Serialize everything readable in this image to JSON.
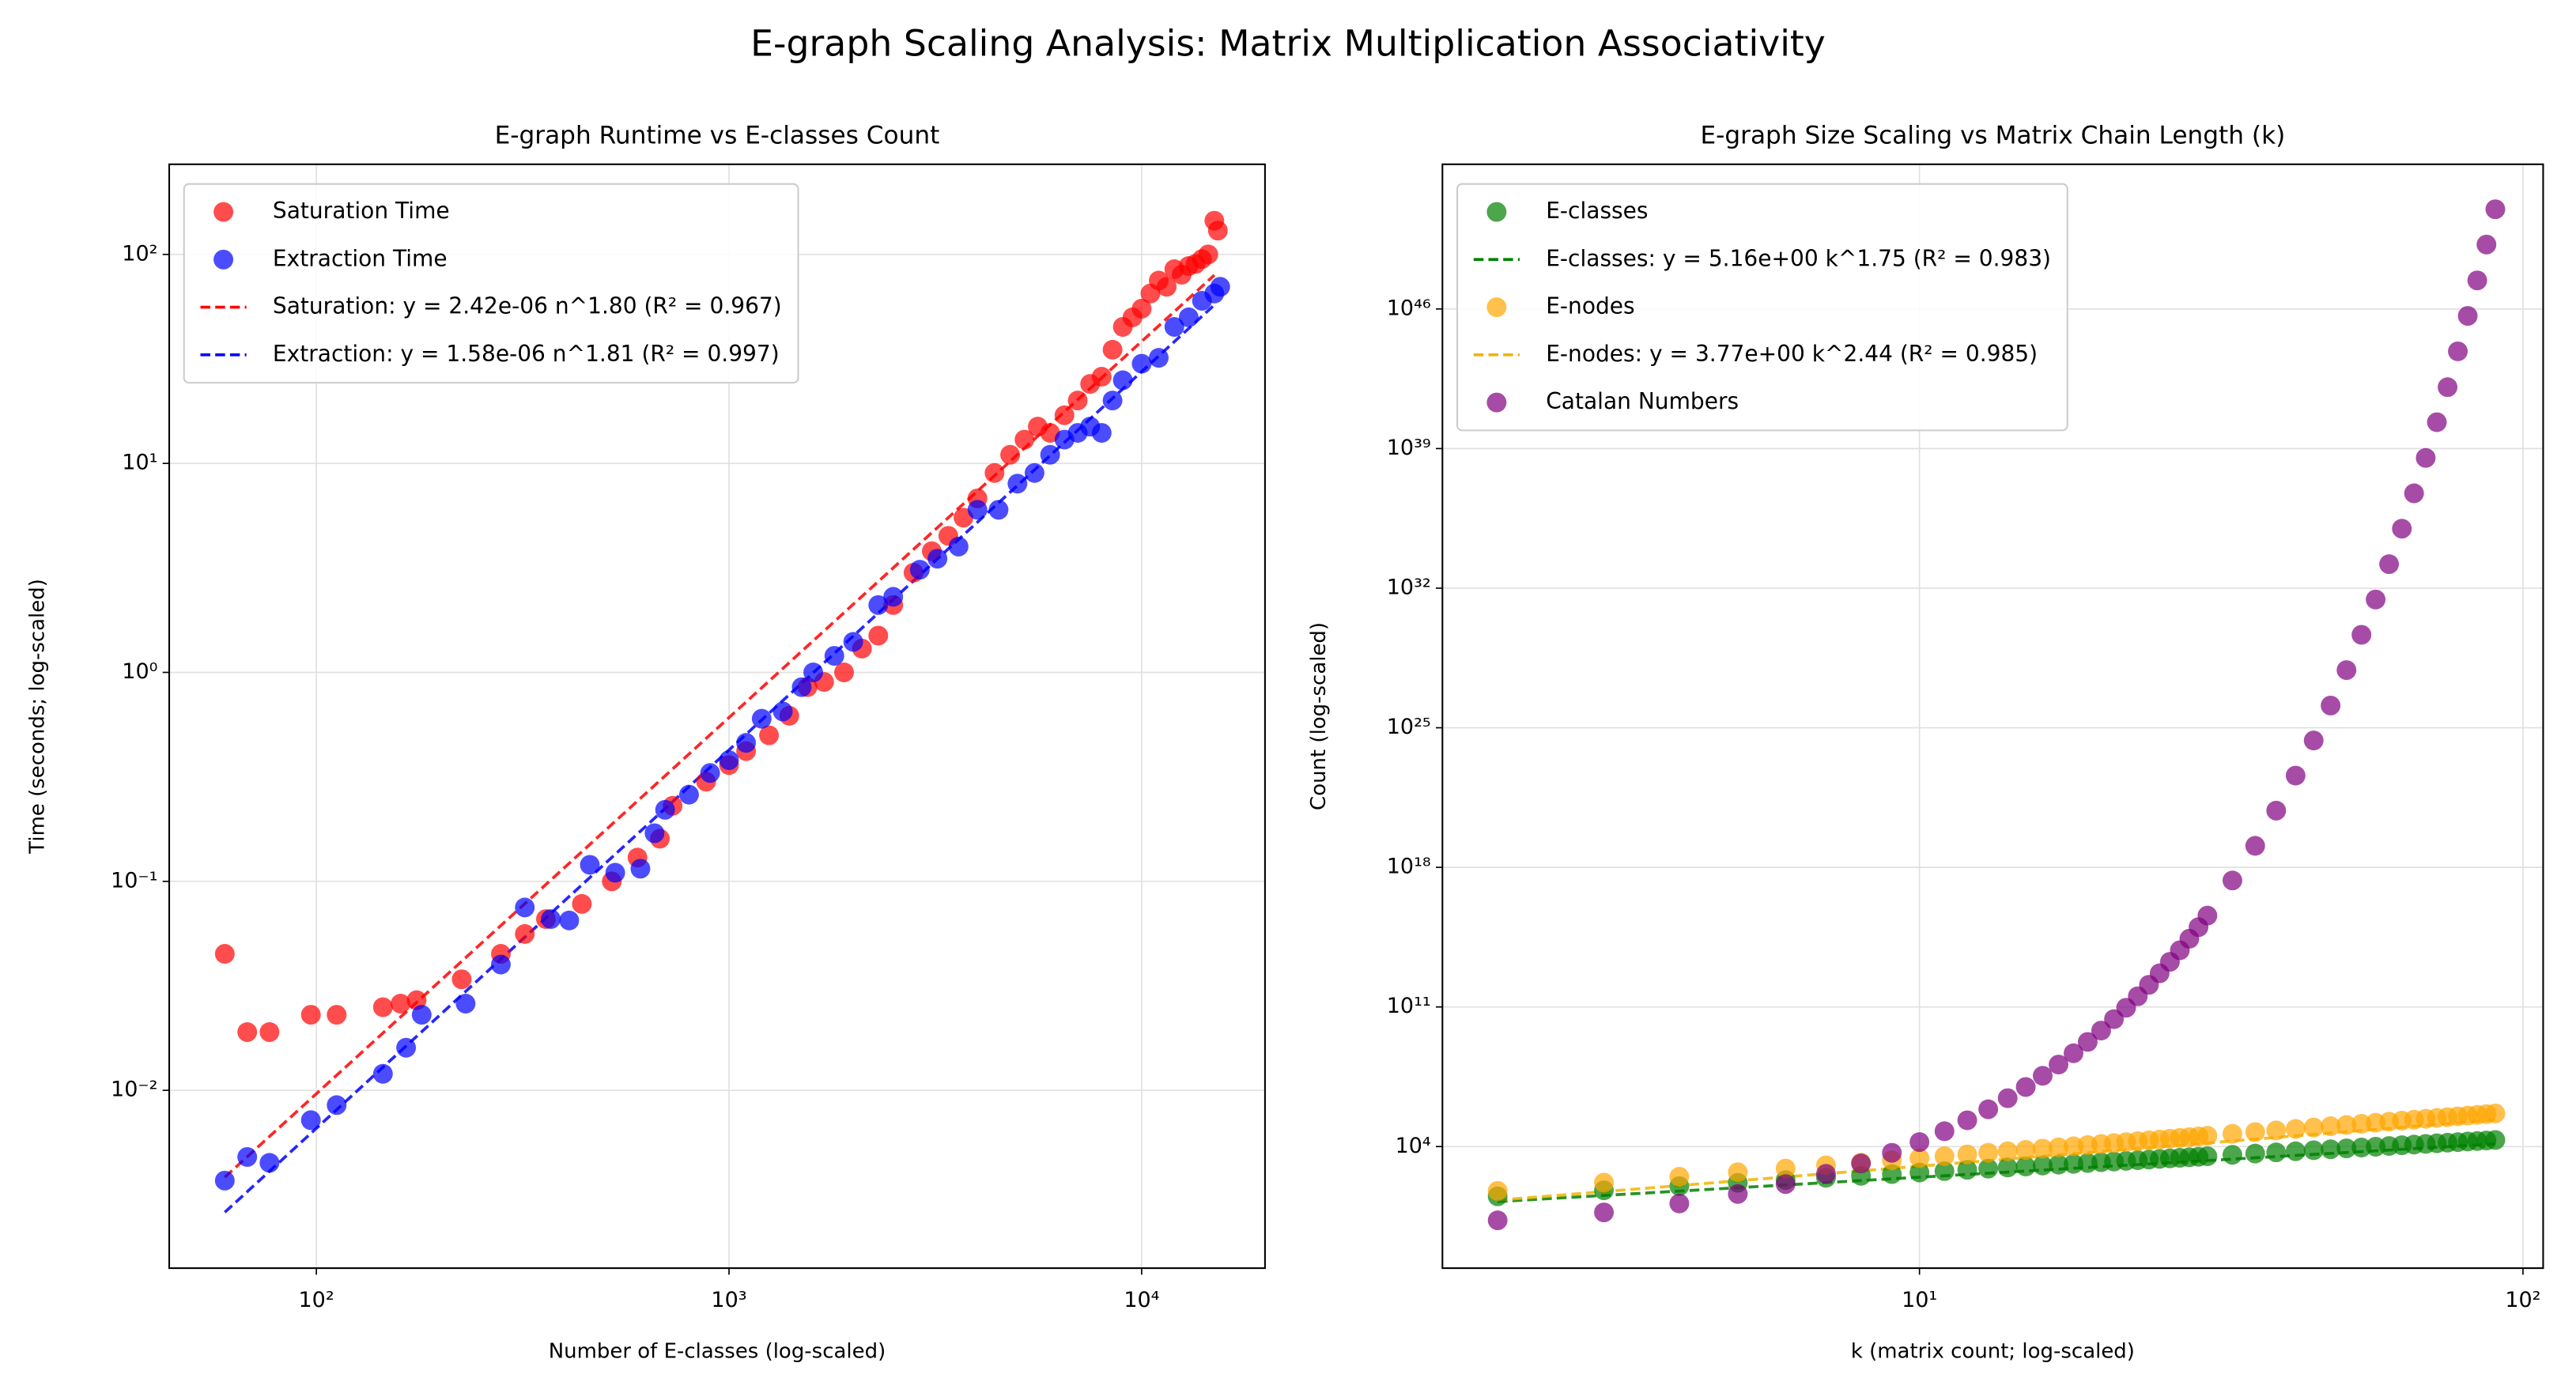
{
  "title": "E-graph Scaling Analysis: Matrix Multiplication Associativity",
  "chart_data": [
    {
      "type": "scatter",
      "title": "E-graph Runtime vs E-classes Count",
      "x_label": "Number of E-classes (log-scaled)",
      "y_label": "Time (seconds; log-scaled)",
      "xscale": "log",
      "yscale": "log",
      "grid": true,
      "legend": "upper-left",
      "alpha": 0.7,
      "xlim": [
        44,
        19900
      ],
      "ylim": [
        0.00141,
        270
      ],
      "xticks": [
        {
          "value": 100,
          "label": "10²"
        },
        {
          "value": 1000,
          "label": "10³"
        },
        {
          "value": 10000,
          "label": "10⁴"
        }
      ],
      "yticks": [
        {
          "value": 0.01,
          "label": "10⁻²"
        },
        {
          "value": 0.1,
          "label": "10⁻¹"
        },
        {
          "value": 1,
          "label": "10⁰"
        },
        {
          "value": 10,
          "label": "10¹"
        },
        {
          "value": 100,
          "label": "10²"
        }
      ],
      "series": [
        {
          "name": "Saturation Time",
          "kind": "scatter",
          "color": "red",
          "x": [
            60,
            68,
            77,
            97,
            112,
            145,
            160,
            175,
            225,
            280,
            320,
            360,
            440,
            520,
            600,
            680,
            730,
            880,
            1000,
            1100,
            1250,
            1400,
            1550,
            1700,
            1900,
            2100,
            2300,
            2500,
            2800,
            3100,
            3400,
            3700,
            4000,
            4400,
            4800,
            5200,
            5600,
            6000,
            6500,
            7000,
            7500,
            8000,
            8500,
            9000,
            9500,
            10000,
            10500,
            11000,
            11500,
            12000,
            12500,
            13000,
            13500,
            14000,
            14500,
            15000,
            15300
          ],
          "values": [
            0.045,
            0.019,
            0.019,
            0.023,
            0.023,
            0.025,
            0.026,
            0.027,
            0.034,
            0.045,
            0.056,
            0.066,
            0.078,
            0.1,
            0.13,
            0.16,
            0.23,
            0.3,
            0.36,
            0.42,
            0.5,
            0.62,
            0.85,
            0.9,
            1.0,
            1.3,
            1.5,
            2.1,
            3.0,
            3.8,
            4.5,
            5.5,
            6.8,
            9,
            11,
            13,
            15,
            14,
            17,
            20,
            24,
            26,
            35,
            45,
            50,
            55,
            65,
            75,
            70,
            85,
            80,
            88,
            90,
            95,
            100,
            145,
            130
          ]
        },
        {
          "name": "Extraction Time",
          "kind": "scatter",
          "color": "blue",
          "x": [
            60,
            68,
            77,
            97,
            112,
            145,
            165,
            180,
            230,
            280,
            320,
            370,
            410,
            460,
            530,
            610,
            660,
            700,
            800,
            900,
            1000,
            1100,
            1200,
            1350,
            1500,
            1600,
            1800,
            2000,
            2300,
            2500,
            2900,
            3200,
            3600,
            4000,
            4500,
            5000,
            5500,
            6000,
            6500,
            7000,
            7500,
            8000,
            8500,
            9000,
            10000,
            11000,
            12000,
            13000,
            14000,
            15000,
            15500
          ],
          "values": [
            0.0037,
            0.0048,
            0.0045,
            0.0072,
            0.0085,
            0.012,
            0.016,
            0.023,
            0.026,
            0.04,
            0.075,
            0.066,
            0.065,
            0.12,
            0.11,
            0.115,
            0.17,
            0.22,
            0.26,
            0.33,
            0.38,
            0.46,
            0.6,
            0.65,
            0.85,
            1.0,
            1.2,
            1.4,
            2.1,
            2.3,
            3.1,
            3.5,
            4.0,
            6.0,
            6.0,
            8.0,
            9.0,
            11,
            13,
            14,
            15,
            14,
            20,
            25,
            30,
            32,
            45,
            50,
            60,
            65,
            70
          ]
        },
        {
          "name": "Saturation: y = 2.42e-06 n^1.80 (R² = 0.967)",
          "kind": "fit",
          "color": "red",
          "x": [
            60,
            15000
          ],
          "values": [
            0.00384,
            79.6
          ]
        },
        {
          "name": "Extraction: y = 1.58e-06 n^1.81 (R² = 0.997)",
          "kind": "fit",
          "color": "blue",
          "x": [
            60,
            15000
          ],
          "values": [
            0.00261,
            57.3
          ]
        }
      ]
    },
    {
      "type": "scatter",
      "title": "E-graph Size Scaling vs Matrix Chain Length (k)",
      "x_label": "k (matrix count; log-scaled)",
      "y_label": "Count (log-scaled)",
      "xscale": "log",
      "yscale": "log",
      "grid": true,
      "legend": "upper-left",
      "alpha": 0.7,
      "xlim": [
        1.62,
        108
      ],
      "ylim": [
        0.008,
        1.8e+53
      ],
      "xticks": [
        {
          "value": 10,
          "label": "10¹"
        },
        {
          "value": 100,
          "label": "10²"
        }
      ],
      "yticks": [
        {
          "value": 10000.0,
          "label": "10⁴"
        },
        {
          "value": 100000000000.0,
          "label": "10¹¹"
        },
        {
          "value": 1e+18,
          "label": "10¹⁸"
        },
        {
          "value": 1e+25,
          "label": "10²⁵"
        },
        {
          "value": 1e+32,
          "label": "10³²"
        },
        {
          "value": 1e+39,
          "label": "10³⁹"
        },
        {
          "value": 1e+46,
          "label": "10⁴⁶"
        }
      ],
      "series": [
        {
          "name": "E-classes",
          "kind": "scatter",
          "color": "green",
          "x": [
            2,
            3,
            4,
            5,
            6,
            7,
            8,
            9,
            10,
            11,
            12,
            13,
            14,
            15,
            16,
            17,
            18,
            19,
            20,
            21,
            22,
            23,
            24,
            25,
            26,
            27,
            28,
            29,
            30,
            33,
            36,
            39,
            42,
            45,
            48,
            51,
            54,
            57,
            60,
            63,
            66,
            69,
            72,
            75,
            78,
            81,
            84,
            87,
            90
          ],
          "values": [
            32,
            64,
            104,
            153,
            208,
            272,
            341,
            417,
            500,
            587,
            682,
            783,
            889,
            1000,
            1120,
            1240,
            1360,
            1500,
            1640,
            1780,
            1920,
            2080,
            2230,
            2400,
            2560,
            2730,
            2900,
            3080,
            3270,
            3850,
            4470,
            5130,
            5810,
            6550,
            7310,
            8130,
            8930,
            9820,
            10700,
            11600,
            12600,
            13600,
            14600,
            15700,
            16700,
            17900,
            19000,
            20200,
            21400
          ]
        },
        {
          "name": "E-classes: y = 5.16e+00 k^1.75 (R² = 0.983)",
          "kind": "fit",
          "color": "green",
          "x": [
            2,
            90
          ],
          "values": [
            17.4,
            13600
          ]
        },
        {
          "name": "E-nodes",
          "kind": "scatter",
          "color": "orange",
          "x": [
            2,
            3,
            4,
            5,
            6,
            7,
            8,
            9,
            10,
            11,
            12,
            13,
            14,
            15,
            16,
            17,
            18,
            19,
            20,
            21,
            22,
            23,
            24,
            25,
            26,
            27,
            28,
            29,
            30,
            33,
            36,
            39,
            42,
            45,
            48,
            51,
            54,
            57,
            60,
            63,
            66,
            69,
            72,
            75,
            78,
            81,
            84,
            87,
            90
          ],
          "values": [
            60,
            155,
            305,
            516,
            791,
            1140,
            1560,
            2050,
            2630,
            3280,
            4040,
            4880,
            5800,
            6820,
            7930,
            9140,
            10400,
            11900,
            13400,
            15000,
            16700,
            18700,
            20600,
            22600,
            24800,
            27100,
            29500,
            32100,
            34800,
            43700,
            53300,
            64400,
            76600,
            90200,
            105000,
            121000,
            138000,
            157000,
            177000,
            199000,
            222000,
            247000,
            272000,
            299000,
            328000,
            358000,
            390000,
            426000,
            459000
          ]
        },
        {
          "name": "E-nodes: y = 3.77e+00 k^2.44 (R² = 0.985)",
          "kind": "fit",
          "color": "#f0b400",
          "x": [
            2,
            90
          ],
          "values": [
            20.5,
            221000
          ]
        },
        {
          "name": "Catalan Numbers",
          "kind": "scatter",
          "color": "purple",
          "x": [
            2,
            3,
            4,
            5,
            6,
            7,
            8,
            9,
            10,
            11,
            12,
            13,
            14,
            15,
            16,
            17,
            18,
            19,
            20,
            21,
            22,
            23,
            24,
            25,
            26,
            27,
            28,
            29,
            30,
            33,
            36,
            39,
            42,
            45,
            48,
            51,
            54,
            57,
            60,
            63,
            66,
            69,
            72,
            75,
            78,
            81,
            84,
            87,
            90
          ],
          "values": [
            2,
            5,
            14,
            42,
            132,
            429,
            1430,
            4862,
            16796,
            58786,
            208012,
            742900,
            2674440,
            9694845,
            35357670,
            129644790,
            477638700,
            1767263190,
            6564120420,
            24466267020,
            91482563640,
            343059613650,
            1289904147324,
            4861946401452,
            18367353072152,
            69533550916004,
            263747951750360,
            1002242216651368,
            3814986502092304,
            2.2e+17,
            1.2e+19,
            7e+20,
            4e+22,
            2.3e+24,
            1.3e+26,
            7.8e+27,
            4.6e+29,
            2.7e+31,
            1.6e+33,
            9.6e+34,
            5.7e+36,
            3.4e+38,
            2.1e+40,
            1.2e+42,
            7.5e+43,
            4.5e+45,
            2.7e+47,
            1.7e+49,
            1e+51
          ]
        }
      ]
    }
  ]
}
